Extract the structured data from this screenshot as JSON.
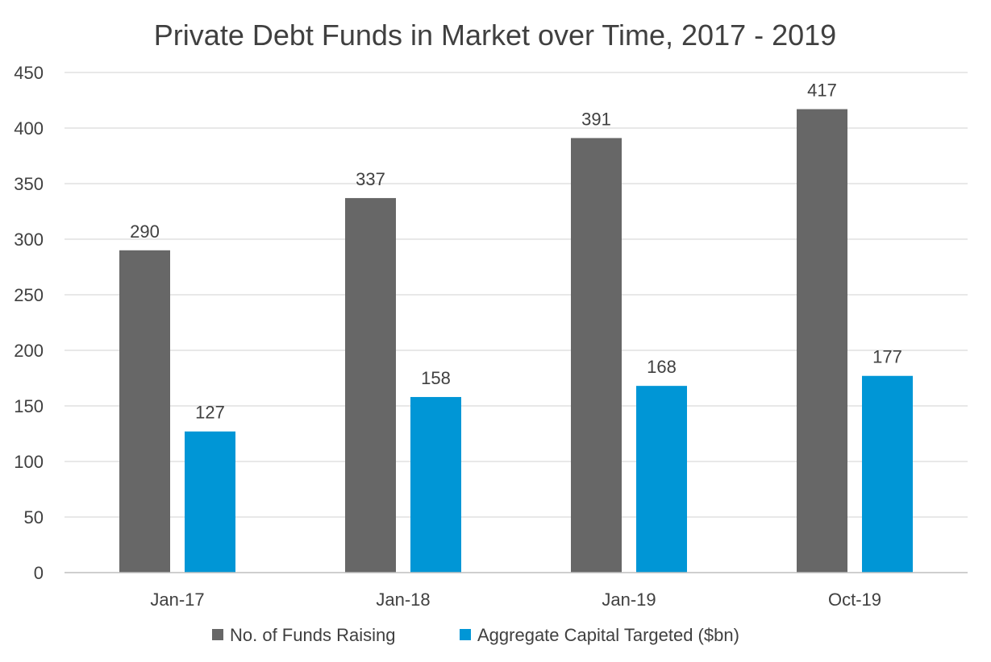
{
  "chart_data": {
    "type": "bar",
    "title": "Private Debt Funds in Market over Time, 2017 - 2019",
    "xlabel": "",
    "ylabel": "",
    "categories": [
      "Jan-17",
      "Jan-18",
      "Jan-19",
      "Oct-19"
    ],
    "series": [
      {
        "name": "No. of Funds Raising",
        "color": "#676767",
        "values": [
          290,
          337,
          391,
          417
        ]
      },
      {
        "name": "Aggregate Capital Targeted ($bn)",
        "color": "#0096d6",
        "values": [
          127,
          158,
          168,
          177
        ]
      }
    ],
    "ylim": [
      0,
      450
    ],
    "yticks": [
      0,
      50,
      100,
      150,
      200,
      250,
      300,
      350,
      400,
      450
    ],
    "grid": true,
    "data_labels": true,
    "legend_position": "bottom"
  }
}
